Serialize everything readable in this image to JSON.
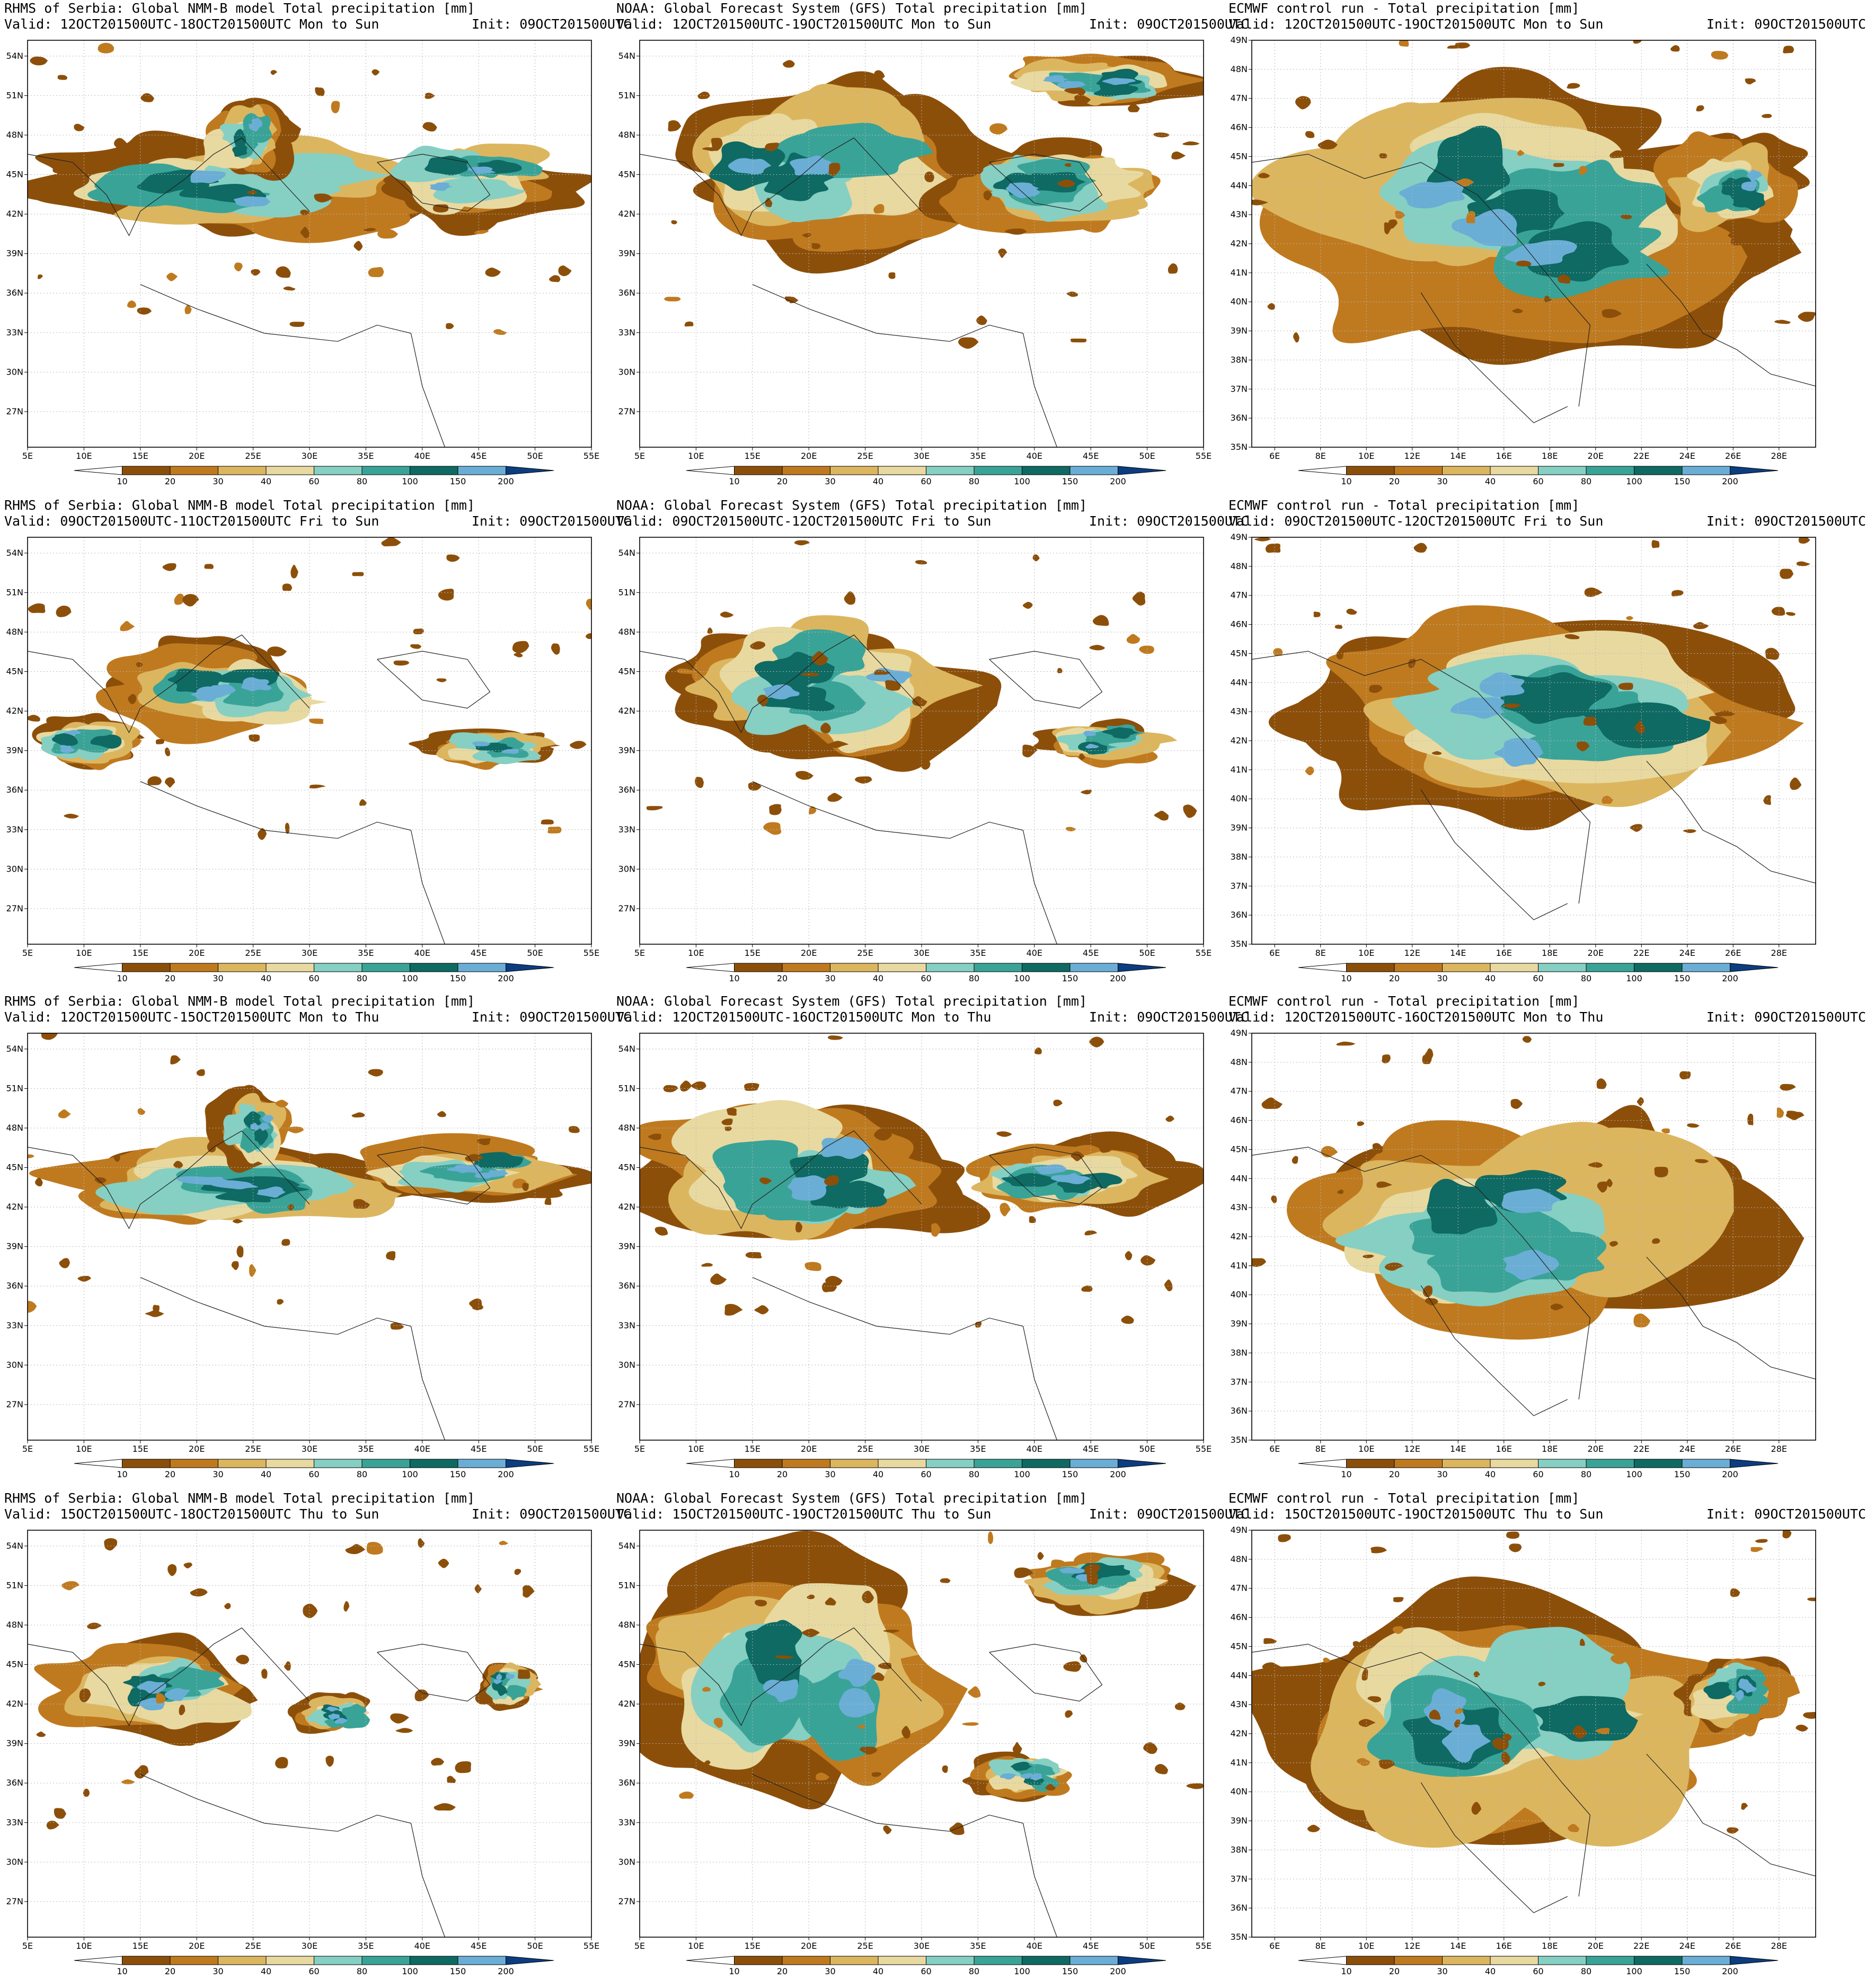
{
  "colorbar": {
    "levels": [
      "10",
      "20",
      "30",
      "40",
      "60",
      "80",
      "100",
      "150",
      "200"
    ],
    "colors": [
      "#8c4f0a",
      "#bf7a1f",
      "#dcb65f",
      "#e8d9a0",
      "#86cfc3",
      "#3aa397",
      "#0e6a62",
      "#6aaed6",
      "#2f6eab",
      "#0b3d80"
    ]
  },
  "axes": {
    "rhms": {
      "lon_labels": [
        "5E",
        "10E",
        "15E",
        "20E",
        "25E",
        "30E",
        "35E",
        "40E",
        "45E",
        "50E",
        "55E"
      ],
      "lat_labels": [
        "54N",
        "51N",
        "48N",
        "45N",
        "42N",
        "39N",
        "36N",
        "33N",
        "30N",
        "27N"
      ]
    },
    "gfs": {
      "lon_labels": [
        "5E",
        "10E",
        "15E",
        "20E",
        "25E",
        "30E",
        "35E",
        "40E",
        "45E",
        "50E",
        "55E"
      ],
      "lat_labels": [
        "54N",
        "51N",
        "48N",
        "45N",
        "42N",
        "39N",
        "36N",
        "33N",
        "30N",
        "27N"
      ]
    },
    "ecmwf": {
      "lon_labels": [
        "6E",
        "8E",
        "10E",
        "12E",
        "14E",
        "16E",
        "18E",
        "20E",
        "22E",
        "24E",
        "26E",
        "28E"
      ],
      "lat_labels": [
        "49N",
        "48N",
        "47N",
        "46N",
        "45N",
        "44N",
        "43N",
        "42N",
        "41N",
        "40N",
        "39N",
        "38N",
        "37N",
        "36N",
        "35N"
      ]
    }
  },
  "panels": [
    {
      "row": 0,
      "col": 0,
      "model": "rhms",
      "title": "RHMS of Serbia: Global NMM-B model Total precipitation [mm]",
      "valid": "Valid: 12OCT201500UTC-18OCT201500UTC Mon to Sun",
      "init": "Init: 09OCT201500UTC"
    },
    {
      "row": 0,
      "col": 1,
      "model": "gfs",
      "title": "NOAA: Global Forecast System (GFS) Total precipitation [mm]",
      "valid": "Valid: 12OCT201500UTC-19OCT201500UTC Mon to Sun",
      "init": "Init: 09OCT201500UTC"
    },
    {
      "row": 0,
      "col": 2,
      "model": "ecmwf",
      "title": "ECMWF control run - Total precipitation [mm]",
      "valid": "Valid: 12OCT201500UTC-19OCT201500UTC Mon to Sun",
      "init": "Init: 09OCT201500UTC"
    },
    {
      "row": 1,
      "col": 0,
      "model": "rhms",
      "title": "RHMS of Serbia: Global NMM-B model Total precipitation [mm]",
      "valid": "Valid: 09OCT201500UTC-11OCT201500UTC Fri to Sun",
      "init": "Init: 09OCT201500UTC"
    },
    {
      "row": 1,
      "col": 1,
      "model": "gfs",
      "title": "NOAA: Global Forecast System (GFS) Total precipitation [mm]",
      "valid": "Valid: 09OCT201500UTC-12OCT201500UTC Fri to Sun",
      "init": "Init: 09OCT201500UTC"
    },
    {
      "row": 1,
      "col": 2,
      "model": "ecmwf",
      "title": "ECMWF control run - Total precipitation [mm]",
      "valid": "Valid: 09OCT201500UTC-12OCT201500UTC Fri to Sun",
      "init": "Init: 09OCT201500UTC"
    },
    {
      "row": 2,
      "col": 0,
      "model": "rhms",
      "title": "RHMS of Serbia: Global NMM-B model Total precipitation [mm]",
      "valid": "Valid: 12OCT201500UTC-15OCT201500UTC Mon to Thu",
      "init": "Init: 09OCT201500UTC"
    },
    {
      "row": 2,
      "col": 1,
      "model": "gfs",
      "title": "NOAA: Global Forecast System (GFS) Total precipitation [mm]",
      "valid": "Valid: 12OCT201500UTC-16OCT201500UTC Mon to Thu",
      "init": "Init: 09OCT201500UTC"
    },
    {
      "row": 2,
      "col": 2,
      "model": "ecmwf",
      "title": "ECMWF control run - Total precipitation [mm]",
      "valid": "Valid: 12OCT201500UTC-16OCT201500UTC Mon to Thu",
      "init": "Init: 09OCT201500UTC"
    },
    {
      "row": 3,
      "col": 0,
      "model": "rhms",
      "title": "RHMS of Serbia: Global NMM-B model Total precipitation [mm]",
      "valid": "Valid: 15OCT201500UTC-18OCT201500UTC Thu to Sun",
      "init": "Init: 09OCT201500UTC"
    },
    {
      "row": 3,
      "col": 1,
      "model": "gfs",
      "title": "NOAA: Global Forecast System (GFS) Total precipitation [mm]",
      "valid": "Valid: 15OCT201500UTC-19OCT201500UTC Thu to Sun",
      "init": "Init: 09OCT201500UTC"
    },
    {
      "row": 3,
      "col": 2,
      "model": "ecmwf",
      "title": "ECMWF control run - Total precipitation [mm]",
      "valid": "Valid: 15OCT201500UTC-19OCT201500UTC Thu to Sun",
      "init": "Init: 09OCT201500UTC"
    }
  ]
}
